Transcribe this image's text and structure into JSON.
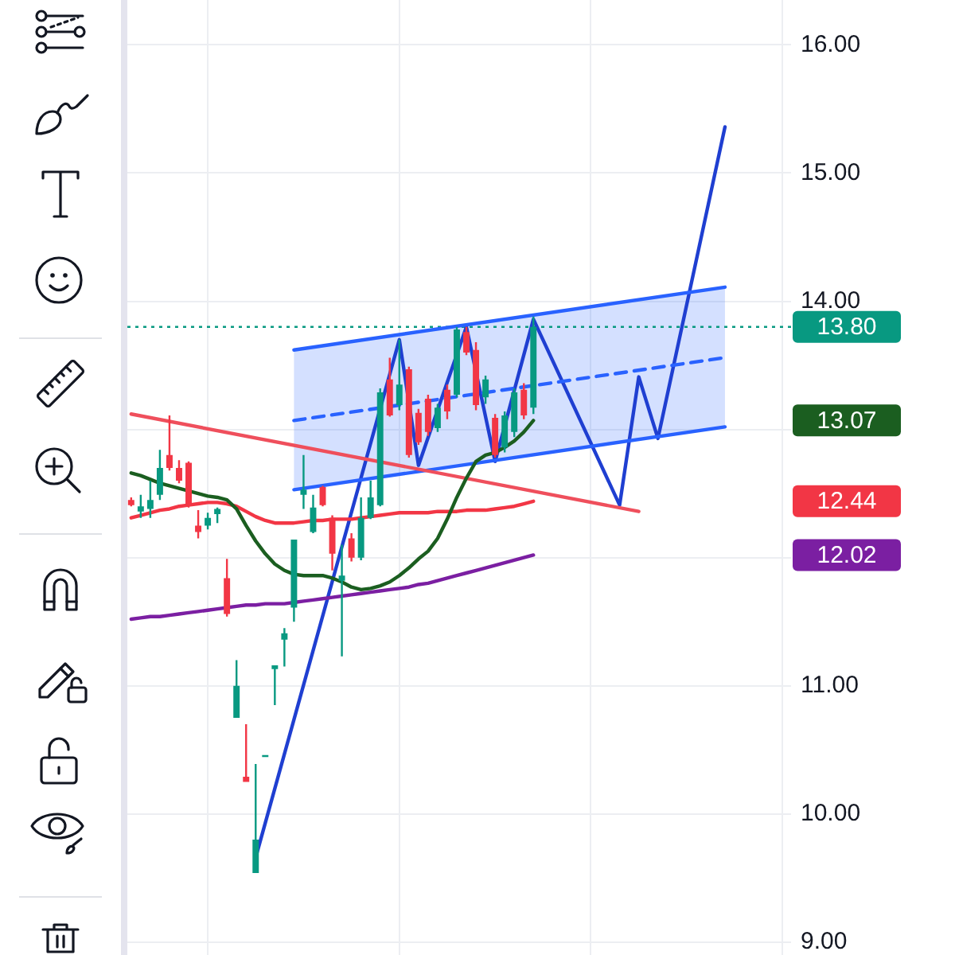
{
  "chart_data": {
    "type": "candlestick",
    "categories": [
      null,
      null,
      null,
      null,
      null,
      null,
      null,
      null,
      null,
      null,
      null,
      null,
      null,
      null,
      null,
      null,
      null,
      null,
      null,
      null,
      null,
      null,
      null,
      null,
      null,
      null,
      null,
      null,
      null,
      null,
      null,
      null,
      null,
      null,
      null,
      null,
      null,
      null,
      null,
      null,
      null,
      null,
      null,
      null,
      null,
      null,
      null,
      null,
      null,
      null,
      null,
      null,
      null,
      null,
      null,
      null,
      null,
      null,
      null,
      null,
      null,
      null,
      null,
      null,
      null,
      null,
      null,
      null,
      null
    ],
    "ohlc": [
      [
        12.45,
        12.47,
        12.4,
        12.41
      ],
      [
        12.36,
        12.49,
        12.31,
        12.4
      ],
      [
        12.38,
        12.6,
        12.31,
        12.45
      ],
      [
        12.49,
        12.84,
        12.45,
        12.7
      ],
      [
        12.8,
        13.11,
        12.68,
        12.7
      ],
      [
        12.7,
        12.76,
        12.58,
        12.6
      ],
      [
        12.74,
        12.75,
        12.39,
        12.41
      ],
      [
        12.25,
        12.37,
        12.15,
        12.2
      ],
      [
        12.25,
        12.35,
        12.22,
        12.31
      ],
      [
        12.34,
        12.39,
        12.27,
        12.38
      ],
      [
        11.84,
        11.99,
        11.54,
        11.56
      ],
      [
        10.75,
        11.2,
        10.75,
        11.0
      ],
      [
        10.29,
        10.7,
        10.25,
        10.25
      ],
      [
        9.54,
        10.39,
        9.54,
        9.8
      ],
      [
        10.45,
        10.46,
        10.45,
        10.46
      ],
      [
        11.13,
        11.16,
        10.85,
        11.16
      ],
      [
        11.36,
        11.45,
        11.15,
        11.41
      ],
      [
        11.61,
        12.14,
        11.5,
        12.14
      ],
      [
        12.49,
        12.8,
        12.38,
        12.53
      ],
      [
        12.2,
        12.49,
        12.19,
        12.39
      ],
      [
        12.55,
        12.56,
        12.4,
        12.41
      ],
      [
        12.31,
        12.33,
        11.9,
        12.03
      ],
      [
        11.82,
        12.1,
        11.23,
        11.86
      ],
      [
        12.15,
        12.19,
        11.97,
        12.0
      ],
      [
        12.0,
        12.47,
        11.98,
        12.31
      ],
      [
        12.31,
        12.6,
        12.3,
        12.47
      ],
      [
        12.41,
        13.32,
        12.4,
        13.29
      ],
      [
        13.39,
        13.56,
        13.1,
        13.11
      ],
      [
        13.19,
        13.7,
        13.15,
        13.35
      ],
      [
        13.47,
        13.49,
        12.78,
        12.8
      ],
      [
        13.13,
        13.16,
        12.88,
        12.9
      ],
      [
        13.24,
        13.27,
        12.95,
        12.98
      ],
      [
        13.01,
        13.2,
        12.98,
        13.17
      ],
      [
        13.31,
        13.35,
        13.08,
        13.14
      ],
      [
        13.27,
        13.8,
        13.25,
        13.78
      ],
      [
        13.76,
        13.8,
        13.58,
        13.6
      ],
      [
        13.62,
        13.68,
        13.15,
        13.19
      ],
      [
        13.25,
        13.42,
        13.2,
        13.39
      ],
      [
        13.09,
        13.12,
        12.78,
        12.8
      ],
      [
        12.86,
        13.14,
        12.82,
        13.11
      ],
      [
        12.98,
        13.32,
        12.94,
        13.29
      ],
      [
        13.31,
        13.36,
        13.08,
        13.11
      ],
      [
        13.17,
        13.88,
        13.12,
        13.8
      ],
      null,
      null,
      null,
      null,
      null,
      null,
      null,
      null,
      null,
      null,
      null,
      null,
      null,
      null,
      null,
      null,
      null,
      null,
      null,
      null,
      null,
      null,
      null,
      null,
      null,
      null
    ],
    "colors": [
      "#f23645",
      "#089981",
      "#089981",
      "#089981",
      "#f23645",
      "#f23645",
      "#f23645",
      "#f23645",
      "#089981",
      "#089981",
      "#f23645",
      "#089981",
      "#f23645",
      "#089981",
      "#089981",
      "#089981",
      "#089981",
      "#089981",
      "#089981",
      "#089981",
      "#f23645",
      "#f23645",
      "#089981",
      "#f23645",
      "#089981",
      "#089981",
      "#089981",
      "#f23645",
      "#089981",
      "#f23645",
      "#f23645",
      "#f23645",
      "#089981",
      "#f23645",
      "#089981",
      "#f23645",
      "#f23645",
      "#089981",
      "#f23645",
      "#089981",
      "#089981",
      "#f23645",
      "#089981",
      null,
      null,
      null,
      null,
      null,
      null,
      null,
      null,
      null,
      null,
      null,
      null,
      null,
      null,
      null,
      null,
      null,
      null,
      null,
      null,
      null,
      null,
      null,
      null,
      null,
      null
    ],
    "series": [
      {
        "type": "line",
        "color": "#1b5e20",
        "values": [
          12.66,
          12.64,
          12.61,
          12.58,
          12.56,
          12.54,
          12.52,
          12.5,
          12.48,
          12.47,
          12.45,
          12.38,
          12.25,
          12.13,
          12.03,
          11.95,
          11.9,
          11.87,
          11.86,
          11.86,
          11.86,
          11.84,
          11.81,
          11.77,
          11.75,
          11.76,
          11.78,
          11.81,
          11.86,
          11.92,
          11.99,
          12.05,
          12.15,
          12.3,
          12.47,
          12.62,
          12.75,
          12.8,
          12.82,
          12.86,
          12.91,
          12.98,
          13.07,
          null,
          null,
          null,
          null,
          null,
          null,
          null,
          null,
          null,
          null,
          null,
          null,
          null,
          null,
          null,
          null,
          null,
          null,
          null,
          null,
          null,
          null,
          null,
          null,
          null,
          null
        ]
      },
      {
        "type": "line",
        "color": "#f23645",
        "values": [
          12.31,
          12.33,
          12.35,
          12.37,
          12.38,
          12.4,
          12.41,
          12.42,
          12.43,
          12.43,
          12.42,
          12.4,
          12.36,
          12.32,
          12.29,
          12.27,
          12.27,
          12.27,
          12.28,
          12.29,
          12.29,
          12.3,
          12.3,
          12.3,
          12.31,
          12.32,
          12.33,
          12.34,
          12.35,
          12.35,
          12.35,
          12.35,
          12.36,
          12.36,
          12.36,
          12.37,
          12.37,
          12.37,
          12.38,
          12.39,
          12.4,
          12.42,
          12.44,
          null,
          null,
          null,
          null,
          null,
          null,
          null,
          null,
          null,
          null,
          null,
          null,
          null,
          null,
          null,
          null,
          null,
          null,
          null,
          null,
          null,
          null,
          null,
          null,
          null,
          null
        ]
      },
      {
        "type": "line",
        "color": "#7b1fa2",
        "values": [
          11.52,
          11.53,
          11.54,
          11.54,
          11.55,
          11.56,
          11.57,
          11.58,
          11.59,
          11.6,
          11.61,
          11.62,
          11.63,
          11.63,
          11.64,
          11.64,
          11.64,
          11.65,
          11.66,
          11.67,
          11.68,
          11.69,
          11.7,
          11.71,
          11.72,
          11.73,
          11.74,
          11.75,
          11.76,
          11.77,
          11.79,
          11.8,
          11.82,
          11.84,
          11.86,
          11.88,
          11.9,
          11.92,
          11.94,
          11.96,
          11.98,
          12.0,
          12.02,
          null,
          null,
          null,
          null,
          null,
          null,
          null,
          null,
          null,
          null,
          null,
          null,
          null,
          null,
          null,
          null,
          null,
          null,
          null,
          null,
          null,
          null,
          null,
          null,
          null,
          null
        ]
      },
      {
        "type": "line",
        "color": "#ef4f5c",
        "values": [
          13.12,
          null,
          null,
          null,
          null,
          null,
          null,
          null,
          null,
          null,
          null,
          null,
          null,
          null,
          null,
          null,
          null,
          null,
          null,
          null,
          null,
          null,
          null,
          null,
          null,
          null,
          null,
          null,
          null,
          null,
          null,
          null,
          null,
          null,
          null,
          null,
          null,
          null,
          null,
          null,
          null,
          null,
          null,
          null,
          null,
          null,
          null,
          null,
          null,
          null,
          null,
          null,
          null,
          12.36,
          null,
          null,
          null,
          null,
          null,
          null,
          null,
          null,
          null,
          null,
          null,
          null,
          null,
          null,
          null
        ]
      },
      {
        "type": "line",
        "color": "#2962ff",
        "values": [
          null,
          null,
          null,
          null,
          null,
          null,
          null,
          null,
          null,
          null,
          null,
          null,
          null,
          null,
          null,
          null,
          null,
          13.62,
          null,
          null,
          null,
          null,
          null,
          null,
          null,
          null,
          null,
          null,
          null,
          null,
          null,
          null,
          null,
          null,
          null,
          null,
          null,
          null,
          null,
          null,
          null,
          null,
          null,
          null,
          null,
          null,
          null,
          null,
          null,
          null,
          null,
          null,
          null,
          null,
          null,
          null,
          null,
          null,
          null,
          null,
          null,
          null,
          14.11,
          null,
          null,
          null,
          null,
          null,
          null
        ]
      },
      {
        "type": "line",
        "color": "#2962ff",
        "values": [
          null,
          null,
          null,
          null,
          null,
          null,
          null,
          null,
          null,
          null,
          null,
          null,
          null,
          null,
          null,
          null,
          null,
          12.53,
          null,
          null,
          null,
          null,
          null,
          null,
          null,
          null,
          null,
          null,
          null,
          null,
          null,
          null,
          null,
          null,
          null,
          null,
          null,
          null,
          null,
          null,
          null,
          null,
          null,
          null,
          null,
          null,
          null,
          null,
          null,
          null,
          null,
          null,
          null,
          null,
          null,
          null,
          null,
          null,
          null,
          null,
          null,
          null,
          13.02,
          null,
          null,
          null,
          null,
          null,
          null
        ]
      },
      {
        "type": "line",
        "color": "#2962ff",
        "line_style": "dashed",
        "values": [
          null,
          null,
          null,
          null,
          null,
          null,
          null,
          null,
          null,
          null,
          null,
          null,
          null,
          null,
          null,
          null,
          null,
          13.07,
          null,
          null,
          null,
          null,
          null,
          null,
          null,
          null,
          null,
          null,
          null,
          null,
          null,
          null,
          null,
          null,
          null,
          null,
          null,
          null,
          null,
          null,
          null,
          null,
          null,
          null,
          null,
          null,
          null,
          null,
          null,
          null,
          null,
          null,
          null,
          null,
          null,
          null,
          null,
          null,
          null,
          null,
          null,
          null,
          13.56,
          null,
          null,
          null,
          null,
          null,
          null
        ],
        "lower": [
          null,
          null,
          null,
          null,
          null,
          null,
          null,
          null,
          null,
          null,
          null,
          null,
          null,
          null,
          null,
          null,
          null,
          12.53,
          null,
          null,
          null,
          null,
          null,
          null,
          null,
          null,
          null,
          null,
          null,
          null,
          null,
          null,
          null,
          null,
          null,
          null,
          null,
          null,
          null,
          null,
          null,
          null,
          null,
          null,
          null,
          null,
          null,
          null,
          null,
          null,
          null,
          null,
          null,
          null,
          null,
          null,
          null,
          null,
          null,
          null,
          null,
          null,
          13.02,
          null,
          null,
          null,
          null,
          null,
          null
        ],
        "upper": [
          null,
          null,
          null,
          null,
          null,
          null,
          null,
          null,
          null,
          null,
          null,
          null,
          null,
          null,
          null,
          null,
          null,
          13.62,
          null,
          null,
          null,
          null,
          null,
          null,
          null,
          null,
          null,
          null,
          null,
          null,
          null,
          null,
          null,
          null,
          null,
          null,
          null,
          null,
          null,
          null,
          null,
          null,
          null,
          null,
          null,
          null,
          null,
          null,
          null,
          null,
          null,
          null,
          null,
          null,
          null,
          null,
          null,
          null,
          null,
          null,
          null,
          null,
          14.11,
          null,
          null,
          null,
          null,
          null,
          null
        ]
      },
      {
        "type": "line",
        "color": "#1f3fd1",
        "values": [
          null,
          null,
          null,
          null,
          null,
          null,
          null,
          null,
          null,
          null,
          null,
          null,
          null,
          9.66,
          null,
          null,
          null,
          null,
          null,
          null,
          null,
          null,
          null,
          null,
          null,
          null,
          null,
          null,
          13.7,
          null,
          12.72,
          null,
          null,
          null,
          null,
          13.8,
          null,
          null,
          12.75,
          null,
          null,
          null,
          13.86,
          null,
          null,
          null,
          null,
          null,
          null,
          null,
          null,
          12.41,
          null,
          13.41,
          null,
          12.93,
          null,
          null,
          null,
          null,
          null,
          null,
          15.36,
          null,
          null,
          null,
          null,
          null,
          null
        ]
      }
    ],
    "annotations": [
      "13.07",
      "12.44",
      "12.02"
    ],
    "ref_lines": [
      {
        "axis": "y",
        "value": 13.8,
        "label": "13.80",
        "color": "#089981",
        "line_style": "dotted"
      }
    ],
    "ylim": [
      8.9,
      16.35
    ],
    "yticks": [
      {
        "value": 9,
        "label": "9.00"
      },
      {
        "value": 10,
        "label": "10.00"
      },
      {
        "value": 11,
        "label": "11.00"
      },
      {
        "value": 12,
        "label": null
      },
      {
        "value": 13,
        "label": null
      },
      {
        "value": 14,
        "label": "14.00"
      },
      {
        "value": 15,
        "label": "15.00"
      },
      {
        "value": 16,
        "label": "16.00"
      }
    ],
    "grid": true,
    "tick_labels": "y"
  }
}
